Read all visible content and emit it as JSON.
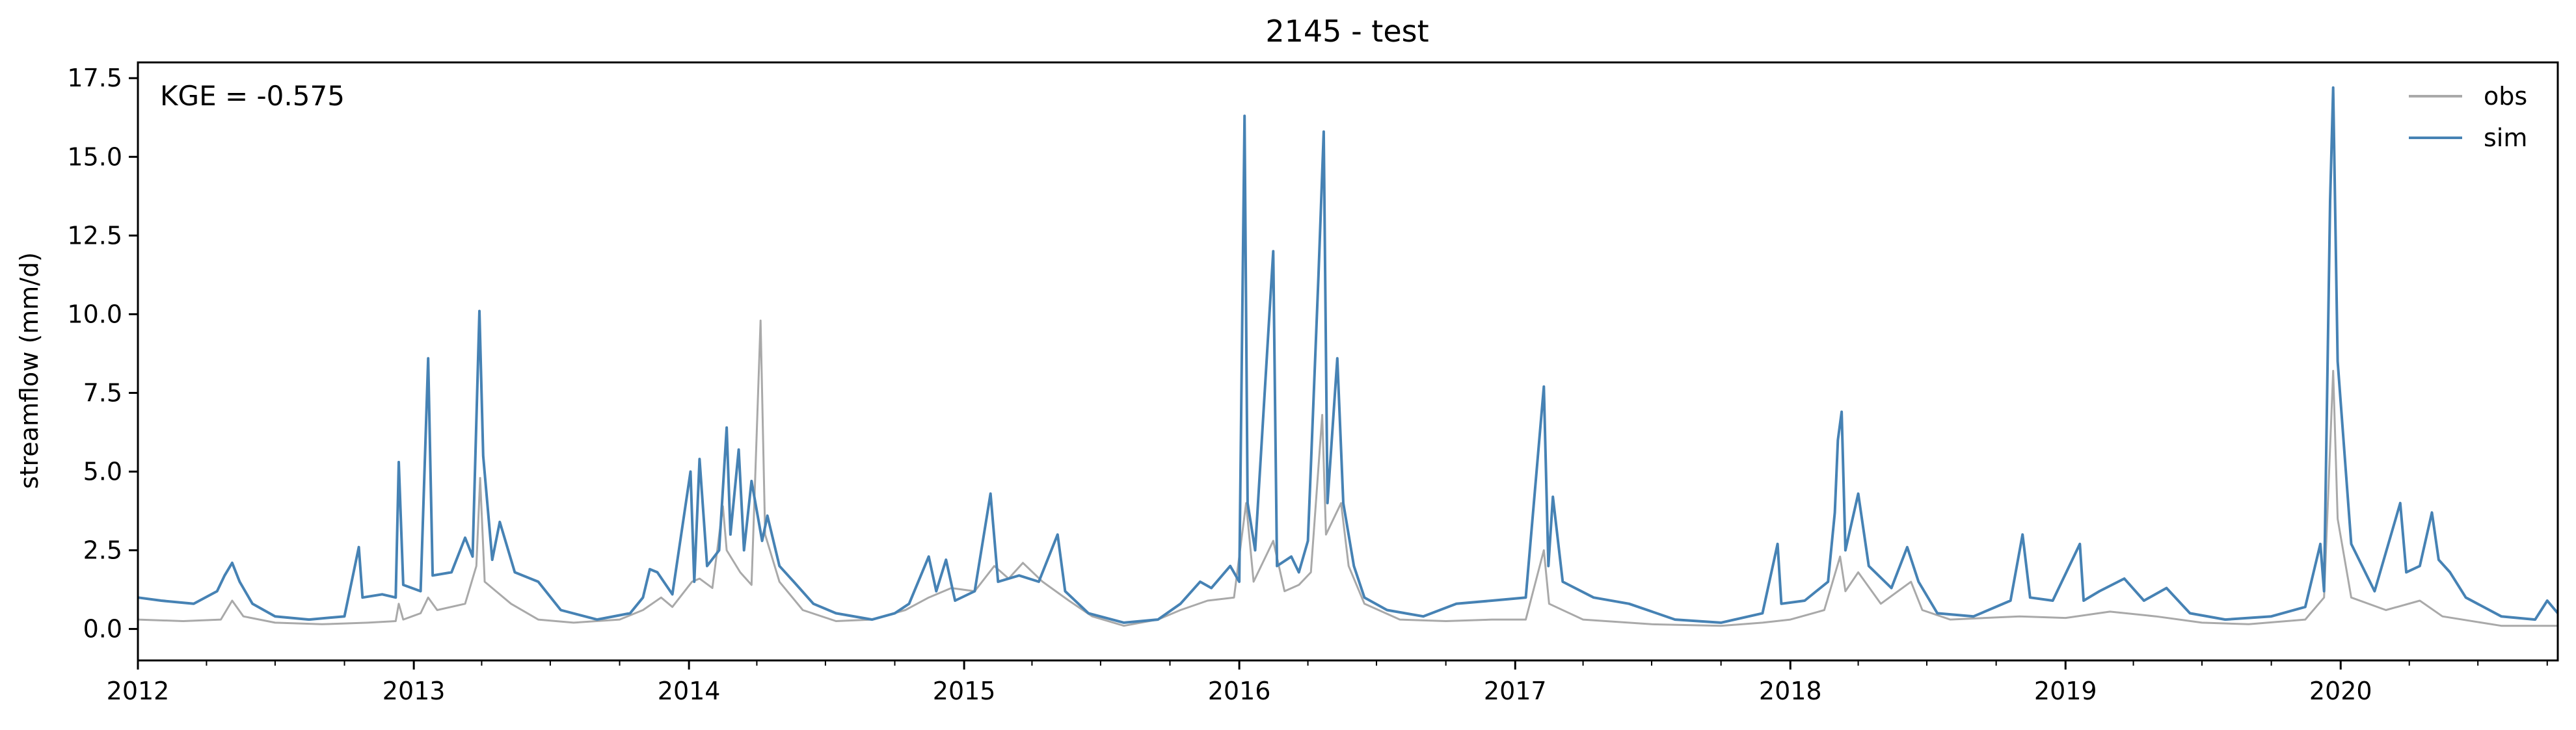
{
  "chart_data": {
    "type": "line",
    "title": "2145 - test",
    "xlabel": "",
    "ylabel": "streamflow (mm/d)",
    "annotation": "KGE = -0.575",
    "xlim": [
      "2012-01-01",
      "2020-10-15"
    ],
    "ylim": [
      -1.0,
      18.0
    ],
    "grid": false,
    "legend_placement": "top-right",
    "x_tick_labels": [
      "2012",
      "2013",
      "2014",
      "2015",
      "2016",
      "2017",
      "2018",
      "2019",
      "2020"
    ],
    "y_tick_labels": [
      "0.0",
      "2.5",
      "5.0",
      "7.5",
      "10.0",
      "12.5",
      "15.0",
      "17.5"
    ],
    "y_ticks": [
      0,
      2.5,
      5,
      7.5,
      10,
      12.5,
      15,
      17.5
    ],
    "series": [
      {
        "name": "obs",
        "color": "#a9a9a9",
        "points": [
          [
            "2012-01-01",
            0.3
          ],
          [
            "2012-03-01",
            0.25
          ],
          [
            "2012-04-20",
            0.3
          ],
          [
            "2012-05-05",
            0.9
          ],
          [
            "2012-05-20",
            0.4
          ],
          [
            "2012-07-01",
            0.2
          ],
          [
            "2012-09-01",
            0.15
          ],
          [
            "2012-11-01",
            0.2
          ],
          [
            "2012-12-08",
            0.25
          ],
          [
            "2012-12-12",
            0.8
          ],
          [
            "2012-12-18",
            0.3
          ],
          [
            "2013-01-10",
            0.5
          ],
          [
            "2013-01-20",
            1.0
          ],
          [
            "2013-02-01",
            0.6
          ],
          [
            "2013-03-10",
            0.8
          ],
          [
            "2013-03-25",
            2.0
          ],
          [
            "2013-03-30",
            4.8
          ],
          [
            "2013-04-05",
            1.5
          ],
          [
            "2013-04-20",
            1.2
          ],
          [
            "2013-05-10",
            0.8
          ],
          [
            "2013-06-15",
            0.3
          ],
          [
            "2013-08-01",
            0.2
          ],
          [
            "2013-10-01",
            0.3
          ],
          [
            "2013-11-01",
            0.6
          ],
          [
            "2013-11-25",
            1.0
          ],
          [
            "2013-12-10",
            0.7
          ],
          [
            "2014-01-05",
            1.5
          ],
          [
            "2014-01-15",
            1.6
          ],
          [
            "2014-02-01",
            1.3
          ],
          [
            "2014-02-15",
            3.9
          ],
          [
            "2014-02-20",
            2.5
          ],
          [
            "2014-03-10",
            1.8
          ],
          [
            "2014-03-25",
            1.4
          ],
          [
            "2014-04-06",
            9.8
          ],
          [
            "2014-04-12",
            3.0
          ],
          [
            "2014-05-01",
            1.5
          ],
          [
            "2014-06-01",
            0.6
          ],
          [
            "2014-07-15",
            0.25
          ],
          [
            "2014-09-01",
            0.3
          ],
          [
            "2014-10-15",
            0.6
          ],
          [
            "2014-11-15",
            1.0
          ],
          [
            "2014-12-15",
            1.3
          ],
          [
            "2015-01-15",
            1.2
          ],
          [
            "2015-02-10",
            2.0
          ],
          [
            "2015-03-01",
            1.6
          ],
          [
            "2015-03-20",
            2.1
          ],
          [
            "2015-04-15",
            1.5
          ],
          [
            "2015-05-20",
            0.9
          ],
          [
            "2015-06-20",
            0.4
          ],
          [
            "2015-08-01",
            0.1
          ],
          [
            "2015-09-15",
            0.3
          ],
          [
            "2015-10-15",
            0.6
          ],
          [
            "2015-11-20",
            0.9
          ],
          [
            "2015-12-25",
            1.0
          ],
          [
            "2016-01-10",
            4.0
          ],
          [
            "2016-01-20",
            1.5
          ],
          [
            "2016-02-15",
            2.8
          ],
          [
            "2016-03-01",
            1.2
          ],
          [
            "2016-03-20",
            1.4
          ],
          [
            "2016-04-05",
            1.8
          ],
          [
            "2016-04-20",
            6.8
          ],
          [
            "2016-04-25",
            3.0
          ],
          [
            "2016-05-15",
            4.0
          ],
          [
            "2016-05-25",
            2.0
          ],
          [
            "2016-06-15",
            0.8
          ],
          [
            "2016-08-01",
            0.3
          ],
          [
            "2016-10-01",
            0.25
          ],
          [
            "2016-12-01",
            0.3
          ],
          [
            "2017-01-15",
            0.3
          ],
          [
            "2017-02-08",
            2.5
          ],
          [
            "2017-02-15",
            0.8
          ],
          [
            "2017-04-01",
            0.3
          ],
          [
            "2017-07-01",
            0.15
          ],
          [
            "2017-10-01",
            0.1
          ],
          [
            "2017-11-25",
            0.2
          ],
          [
            "2018-01-01",
            0.3
          ],
          [
            "2018-02-15",
            0.6
          ],
          [
            "2018-03-08",
            2.3
          ],
          [
            "2018-03-15",
            1.2
          ],
          [
            "2018-04-01",
            1.8
          ],
          [
            "2018-05-01",
            0.8
          ],
          [
            "2018-06-10",
            1.5
          ],
          [
            "2018-06-25",
            0.6
          ],
          [
            "2018-08-01",
            0.3
          ],
          [
            "2018-11-01",
            0.4
          ],
          [
            "2019-01-01",
            0.35
          ],
          [
            "2019-03-01",
            0.55
          ],
          [
            "2019-05-01",
            0.4
          ],
          [
            "2019-07-01",
            0.2
          ],
          [
            "2019-09-01",
            0.15
          ],
          [
            "2019-11-15",
            0.3
          ],
          [
            "2019-12-10",
            1.0
          ],
          [
            "2019-12-22",
            8.2
          ],
          [
            "2019-12-28",
            3.5
          ],
          [
            "2020-01-15",
            1.0
          ],
          [
            "2020-03-01",
            0.6
          ],
          [
            "2020-04-15",
            0.9
          ],
          [
            "2020-05-15",
            0.4
          ],
          [
            "2020-08-01",
            0.1
          ],
          [
            "2020-10-15",
            0.1
          ]
        ]
      },
      {
        "name": "sim",
        "color": "#4682b4",
        "points": [
          [
            "2012-01-01",
            1.0
          ],
          [
            "2012-02-01",
            0.9
          ],
          [
            "2012-03-15",
            0.8
          ],
          [
            "2012-04-15",
            1.2
          ],
          [
            "2012-04-25",
            1.7
          ],
          [
            "2012-05-05",
            2.1
          ],
          [
            "2012-05-15",
            1.5
          ],
          [
            "2012-06-01",
            0.8
          ],
          [
            "2012-07-01",
            0.4
          ],
          [
            "2012-08-15",
            0.3
          ],
          [
            "2012-10-01",
            0.4
          ],
          [
            "2012-10-20",
            2.6
          ],
          [
            "2012-10-25",
            1.0
          ],
          [
            "2012-11-20",
            1.1
          ],
          [
            "2012-12-08",
            1.0
          ],
          [
            "2012-12-12",
            5.3
          ],
          [
            "2012-12-18",
            1.4
          ],
          [
            "2013-01-10",
            1.2
          ],
          [
            "2013-01-20",
            8.6
          ],
          [
            "2013-01-26",
            1.7
          ],
          [
            "2013-02-20",
            1.8
          ],
          [
            "2013-03-10",
            2.9
          ],
          [
            "2013-03-20",
            2.3
          ],
          [
            "2013-03-29",
            10.1
          ],
          [
            "2013-04-03",
            5.5
          ],
          [
            "2013-04-15",
            2.2
          ],
          [
            "2013-04-25",
            3.4
          ],
          [
            "2013-05-15",
            1.8
          ],
          [
            "2013-06-15",
            1.5
          ],
          [
            "2013-07-15",
            0.6
          ],
          [
            "2013-09-01",
            0.3
          ],
          [
            "2013-10-15",
            0.5
          ],
          [
            "2013-11-01",
            1.0
          ],
          [
            "2013-11-10",
            1.9
          ],
          [
            "2013-11-20",
            1.8
          ],
          [
            "2013-12-10",
            1.1
          ],
          [
            "2014-01-03",
            5.0
          ],
          [
            "2014-01-08",
            1.5
          ],
          [
            "2014-01-15",
            5.4
          ],
          [
            "2014-01-25",
            2.0
          ],
          [
            "2014-02-10",
            2.5
          ],
          [
            "2014-02-20",
            6.4
          ],
          [
            "2014-02-25",
            3.0
          ],
          [
            "2014-03-08",
            5.7
          ],
          [
            "2014-03-15",
            2.5
          ],
          [
            "2014-03-25",
            4.7
          ],
          [
            "2014-04-08",
            2.8
          ],
          [
            "2014-04-15",
            3.6
          ],
          [
            "2014-05-01",
            2.0
          ],
          [
            "2014-05-20",
            1.5
          ],
          [
            "2014-06-15",
            0.8
          ],
          [
            "2014-07-15",
            0.5
          ],
          [
            "2014-09-01",
            0.3
          ],
          [
            "2014-10-01",
            0.5
          ],
          [
            "2014-10-20",
            0.8
          ],
          [
            "2014-11-15",
            2.3
          ],
          [
            "2014-11-25",
            1.2
          ],
          [
            "2014-12-08",
            2.2
          ],
          [
            "2014-12-20",
            0.9
          ],
          [
            "2015-01-15",
            1.2
          ],
          [
            "2015-02-05",
            4.3
          ],
          [
            "2015-02-15",
            1.5
          ],
          [
            "2015-03-15",
            1.7
          ],
          [
            "2015-04-10",
            1.5
          ],
          [
            "2015-05-05",
            3.0
          ],
          [
            "2015-05-15",
            1.2
          ],
          [
            "2015-06-15",
            0.5
          ],
          [
            "2015-08-01",
            0.2
          ],
          [
            "2015-09-15",
            0.3
          ],
          [
            "2015-10-15",
            0.8
          ],
          [
            "2015-11-10",
            1.5
          ],
          [
            "2015-11-25",
            1.3
          ],
          [
            "2015-12-20",
            2.0
          ],
          [
            "2016-01-01",
            1.5
          ],
          [
            "2016-01-08",
            16.3
          ],
          [
            "2016-01-12",
            4.0
          ],
          [
            "2016-01-22",
            2.5
          ],
          [
            "2016-02-15",
            12.0
          ],
          [
            "2016-02-20",
            2.0
          ],
          [
            "2016-03-10",
            2.3
          ],
          [
            "2016-03-20",
            1.8
          ],
          [
            "2016-04-01",
            2.8
          ],
          [
            "2016-04-15",
            11.2
          ],
          [
            "2016-04-22",
            15.8
          ],
          [
            "2016-04-27",
            4.0
          ],
          [
            "2016-05-10",
            8.6
          ],
          [
            "2016-05-18",
            4.0
          ],
          [
            "2016-06-01",
            2.0
          ],
          [
            "2016-06-15",
            1.0
          ],
          [
            "2016-07-15",
            0.6
          ],
          [
            "2016-09-01",
            0.4
          ],
          [
            "2016-10-15",
            0.8
          ],
          [
            "2016-12-01",
            0.9
          ],
          [
            "2017-01-15",
            1.0
          ],
          [
            "2017-02-08",
            7.7
          ],
          [
            "2017-02-14",
            2.0
          ],
          [
            "2017-02-20",
            4.2
          ],
          [
            "2017-03-05",
            1.5
          ],
          [
            "2017-04-15",
            1.0
          ],
          [
            "2017-06-01",
            0.8
          ],
          [
            "2017-08-01",
            0.3
          ],
          [
            "2017-10-01",
            0.2
          ],
          [
            "2017-11-25",
            0.5
          ],
          [
            "2017-12-15",
            2.7
          ],
          [
            "2017-12-20",
            0.8
          ],
          [
            "2018-01-20",
            0.9
          ],
          [
            "2018-02-20",
            1.5
          ],
          [
            "2018-03-01",
            3.7
          ],
          [
            "2018-03-05",
            6.0
          ],
          [
            "2018-03-10",
            6.9
          ],
          [
            "2018-03-15",
            2.5
          ],
          [
            "2018-04-01",
            4.3
          ],
          [
            "2018-04-15",
            2.0
          ],
          [
            "2018-05-15",
            1.3
          ],
          [
            "2018-06-05",
            2.6
          ],
          [
            "2018-06-20",
            1.5
          ],
          [
            "2018-07-15",
            0.5
          ],
          [
            "2018-09-01",
            0.4
          ],
          [
            "2018-10-20",
            0.9
          ],
          [
            "2018-11-05",
            3.0
          ],
          [
            "2018-11-15",
            1.0
          ],
          [
            "2018-12-15",
            0.9
          ],
          [
            "2019-01-20",
            2.7
          ],
          [
            "2019-01-25",
            0.9
          ],
          [
            "2019-02-15",
            1.2
          ],
          [
            "2019-03-20",
            1.6
          ],
          [
            "2019-04-15",
            0.9
          ],
          [
            "2019-05-15",
            1.3
          ],
          [
            "2019-06-15",
            0.5
          ],
          [
            "2019-08-01",
            0.3
          ],
          [
            "2019-10-01",
            0.4
          ],
          [
            "2019-11-15",
            0.7
          ],
          [
            "2019-12-05",
            2.7
          ],
          [
            "2019-12-10",
            1.2
          ],
          [
            "2019-12-18",
            13.6
          ],
          [
            "2019-12-22",
            17.2
          ],
          [
            "2019-12-28",
            8.5
          ],
          [
            "2020-01-15",
            2.7
          ],
          [
            "2020-02-15",
            1.2
          ],
          [
            "2020-03-20",
            4.0
          ],
          [
            "2020-03-28",
            1.8
          ],
          [
            "2020-04-15",
            2.0
          ],
          [
            "2020-05-01",
            3.7
          ],
          [
            "2020-05-10",
            2.2
          ],
          [
            "2020-05-25",
            1.8
          ],
          [
            "2020-06-15",
            1.0
          ],
          [
            "2020-08-01",
            0.4
          ],
          [
            "2020-09-15",
            0.3
          ],
          [
            "2020-10-01",
            0.9
          ],
          [
            "2020-10-15",
            0.5
          ]
        ]
      }
    ]
  }
}
